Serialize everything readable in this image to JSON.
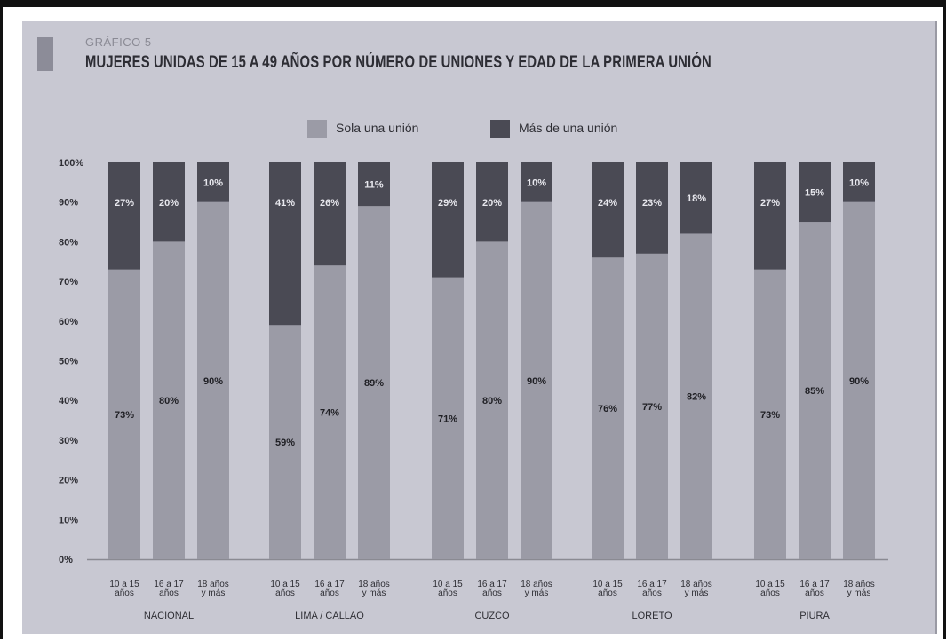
{
  "header": {
    "kicker": "GRÁFICO 5",
    "title": "MUJERES UNIDAS DE 15 A 49 AÑOS POR NÚMERO DE UNIONES Y EDAD DE LA PRIMERA UNIÓN"
  },
  "colors": {
    "panel": "#c8c8d2",
    "sola": "#9b9ba6",
    "mas": "#4a4a54",
    "text": "#2e2e34",
    "axis": "#8a8a92"
  },
  "chart_data": {
    "type": "bar",
    "stacked": true,
    "y_unit": "%",
    "ylim": [
      0,
      100
    ],
    "y_ticks": [
      "0%",
      "10%",
      "20%",
      "30%",
      "40%",
      "50%",
      "60%",
      "70%",
      "80%",
      "90%",
      "100%"
    ],
    "legend": {
      "placement": "top-center",
      "entries": [
        "Sola una unión",
        "Más de una unión"
      ]
    },
    "series": [
      {
        "name": "Sola una unión",
        "color": "#9b9ba6"
      },
      {
        "name": "Más de una unión",
        "color": "#4a4a54"
      }
    ],
    "groups": [
      {
        "name": "NACIONAL",
        "bars": [
          {
            "category": [
              "10 a 15",
              "años"
            ],
            "sola": 73,
            "mas": 27,
            "sola_label": "73%",
            "mas_label": "27%"
          },
          {
            "category": [
              "16 a 17",
              "años"
            ],
            "sola": 80,
            "mas": 20,
            "sola_label": "80%",
            "mas_label": "20%"
          },
          {
            "category": [
              "18 años",
              "y más"
            ],
            "sola": 90,
            "mas": 10,
            "sola_label": "90%",
            "mas_label": "10%"
          }
        ]
      },
      {
        "name": "LIMA / CALLAO",
        "bars": [
          {
            "category": [
              "10 a 15",
              "años"
            ],
            "sola": 59,
            "mas": 41,
            "sola_label": "59%",
            "mas_label": "41%"
          },
          {
            "category": [
              "16 a 17",
              "años"
            ],
            "sola": 74,
            "mas": 26,
            "sola_label": "74%",
            "mas_label": "26%"
          },
          {
            "category": [
              "18 años",
              "y más"
            ],
            "sola": 89,
            "mas": 11,
            "sola_label": "89%",
            "mas_label": "11%"
          }
        ]
      },
      {
        "name": "CUZCO",
        "bars": [
          {
            "category": [
              "10 a 15",
              "años"
            ],
            "sola": 71,
            "mas": 29,
            "sola_label": "71%",
            "mas_label": "29%"
          },
          {
            "category": [
              "16 a 17",
              "años"
            ],
            "sola": 80,
            "mas": 20,
            "sola_label": "80%",
            "mas_label": "20%"
          },
          {
            "category": [
              "18 años",
              "y más"
            ],
            "sola": 90,
            "mas": 10,
            "sola_label": "90%",
            "mas_label": "10%"
          }
        ]
      },
      {
        "name": "LORETO",
        "bars": [
          {
            "category": [
              "10 a 15",
              "años"
            ],
            "sola": 76,
            "mas": 24,
            "sola_label": "76%",
            "mas_label": "24%"
          },
          {
            "category": [
              "16 a 17",
              "años"
            ],
            "sola": 77,
            "mas": 23,
            "sola_label": "77%",
            "mas_label": "23%"
          },
          {
            "category": [
              "18 años",
              "y más"
            ],
            "sola": 82,
            "mas": 18,
            "sola_label": "82%",
            "mas_label": "18%"
          }
        ]
      },
      {
        "name": "PIURA",
        "bars": [
          {
            "category": [
              "10 a 15",
              "años"
            ],
            "sola": 73,
            "mas": 27,
            "sola_label": "73%",
            "mas_label": "27%"
          },
          {
            "category": [
              "16 a 17",
              "años"
            ],
            "sola": 85,
            "mas": 15,
            "sola_label": "85%",
            "mas_label": "15%"
          },
          {
            "category": [
              "18 años",
              "y más"
            ],
            "sola": 90,
            "mas": 10,
            "sola_label": "90%",
            "mas_label": "10%"
          }
        ]
      }
    ]
  }
}
